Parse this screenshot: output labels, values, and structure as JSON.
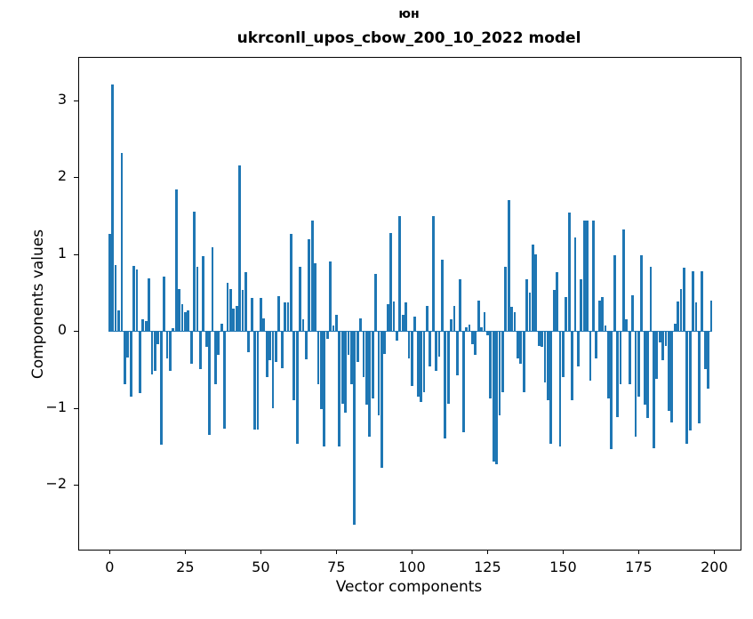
{
  "figure": {
    "suptitle": "юн",
    "title": "ukrconll_upos_cbow_200_10_2022 model"
  },
  "chart_data": {
    "type": "bar",
    "title": "ukrconll_upos_cbow_200_10_2022 model",
    "suptitle": "юн",
    "xlabel": "Vector components",
    "ylabel": "Components values",
    "bar_color": "#1f77b4",
    "grid": false,
    "legend": null,
    "x_description": "component index 0..199",
    "xlim": [
      -10.1,
      208.7
    ],
    "ylim": [
      -2.84,
      3.55
    ],
    "x_ticks": [
      {
        "value": 0,
        "label": "0"
      },
      {
        "value": 25,
        "label": "25"
      },
      {
        "value": 50,
        "label": "50"
      },
      {
        "value": 75,
        "label": "75"
      },
      {
        "value": 100,
        "label": "100"
      },
      {
        "value": 125,
        "label": "125"
      },
      {
        "value": 150,
        "label": "150"
      },
      {
        "value": 175,
        "label": "175"
      },
      {
        "value": 200,
        "label": "200"
      }
    ],
    "y_ticks": [
      {
        "value": 3,
        "label": "3"
      },
      {
        "value": 2,
        "label": "2"
      },
      {
        "value": 1,
        "label": "1"
      },
      {
        "value": 0,
        "label": "0"
      },
      {
        "value": -1,
        "label": "−1"
      },
      {
        "value": -2,
        "label": "−2"
      }
    ],
    "values": [
      1.26,
      3.2,
      0.86,
      0.27,
      2.31,
      -0.69,
      -0.34,
      -0.85,
      0.85,
      0.8,
      -0.81,
      0.15,
      0.13,
      0.69,
      -0.56,
      -0.52,
      -0.17,
      -1.48,
      0.71,
      -0.35,
      -0.52,
      0.04,
      1.84,
      0.54,
      0.35,
      0.25,
      0.27,
      -0.42,
      1.55,
      0.83,
      -0.5,
      0.97,
      -0.2,
      -1.35,
      1.09,
      -0.69,
      -0.31,
      0.1,
      -1.27,
      0.63,
      0.55,
      0.29,
      0.33,
      2.15,
      0.53,
      0.77,
      -0.28,
      0.43,
      -1.28,
      -1.28,
      0.43,
      0.17,
      -0.6,
      -0.38,
      -1.0,
      -0.4,
      0.45,
      -0.48,
      0.37,
      0.37,
      1.26,
      -0.9,
      -1.46,
      0.83,
      0.15,
      -0.37,
      1.19,
      1.43,
      0.88,
      -0.69,
      -1.02,
      -1.5,
      -0.1,
      0.9,
      0.07,
      0.21,
      -1.5,
      -0.94,
      -1.06,
      -0.31,
      -0.69,
      -2.52,
      -0.4,
      0.17,
      -0.6,
      -0.96,
      -1.37,
      -0.87,
      0.74,
      -1.1,
      -1.78,
      -0.3,
      0.35,
      1.27,
      0.38,
      -0.13,
      1.49,
      0.21,
      0.37,
      -0.35,
      -0.71,
      0.19,
      -0.85,
      -0.92,
      -0.79,
      0.33,
      -0.46,
      1.49,
      -0.52,
      -0.33,
      0.93,
      -1.4,
      -0.94,
      0.15,
      0.33,
      -0.58,
      0.67,
      -1.31,
      0.05,
      0.08,
      -0.17,
      -0.31,
      0.4,
      0.05,
      0.25,
      -0.06,
      -0.88,
      -1.7,
      -1.73,
      -1.1,
      -0.79,
      0.83,
      1.7,
      0.31,
      0.25,
      -0.35,
      -0.42,
      -0.79,
      0.67,
      0.5,
      1.12,
      1.0,
      -0.19,
      -0.21,
      -0.67,
      -0.9,
      -1.46,
      0.53,
      0.77,
      -1.5,
      -0.6,
      0.44,
      1.54,
      -0.9,
      1.22,
      -0.46,
      0.67,
      1.43,
      1.43,
      -0.65,
      1.44,
      -0.35,
      0.4,
      0.44,
      0.07,
      -0.87,
      -1.54,
      0.98,
      -1.12,
      -0.69,
      1.32,
      0.15,
      -0.69,
      0.47,
      -1.37,
      -0.85,
      0.98,
      -0.96,
      -1.13,
      0.83,
      -1.52,
      -0.62,
      -0.15,
      -0.38,
      -0.19,
      -1.04,
      -1.19,
      0.1,
      0.38,
      0.54,
      0.82,
      -1.46,
      -1.29,
      0.78,
      0.37,
      -1.2,
      0.78,
      -0.5,
      -0.75,
      0.4
    ]
  }
}
